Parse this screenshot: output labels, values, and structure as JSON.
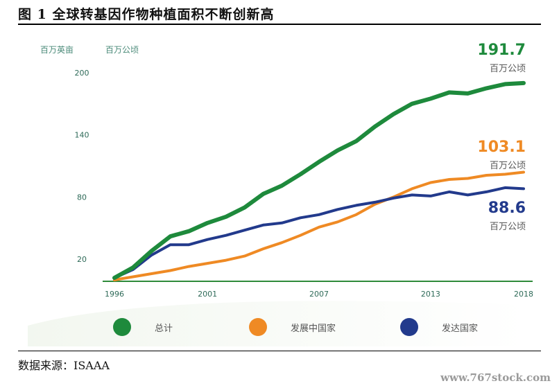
{
  "title": "图 1 全球转基因作物种植面积不断创新高",
  "source": "数据来源：ISAAA",
  "watermark": "www.767stock.com",
  "units": {
    "left": "百万英亩",
    "right": "百万公顷"
  },
  "colors": {
    "total": "#1e8a3c",
    "developing": "#ef8a24",
    "developed": "#223a8c",
    "axis": "#2f8a3a",
    "tick": "#2e6a58"
  },
  "end_labels": [
    {
      "series": "总计",
      "value": "191.7",
      "unit": "百万公顷",
      "color": "#1e8a3c"
    },
    {
      "series": "发展中国家",
      "value": "103.1",
      "unit": "百万公顷",
      "color": "#ef8a24"
    },
    {
      "series": "发达国家",
      "value": "88.6",
      "unit": "百万公顷",
      "color": "#223a8c"
    }
  ],
  "chart_data": {
    "type": "line",
    "title": "",
    "xlabel": "",
    "ylabel": "",
    "xlim": [
      1996,
      2018
    ],
    "ylim": [
      0,
      210
    ],
    "x_ticks": [
      1996,
      2001,
      2007,
      2013,
      2018
    ],
    "y_ticks": [
      20,
      80,
      140,
      200
    ],
    "x": [
      1996,
      1997,
      1998,
      1999,
      2000,
      2001,
      2002,
      2003,
      2004,
      2005,
      2006,
      2007,
      2008,
      2009,
      2010,
      2011,
      2012,
      2013,
      2014,
      2015,
      2016,
      2017,
      2018
    ],
    "series": [
      {
        "name": "总计",
        "color": "#1e8a3c",
        "values": [
          2,
          12,
          28,
          42,
          47,
          55,
          61,
          70,
          83,
          91,
          102,
          114,
          125,
          134,
          148,
          160,
          170,
          175,
          181,
          180,
          185,
          189,
          190
        ]
      },
      {
        "name": "发展中国家",
        "color": "#ef8a24",
        "values": [
          0,
          3,
          6,
          9,
          13,
          16,
          19,
          23,
          30,
          36,
          43,
          51,
          56,
          63,
          73,
          80,
          88,
          94,
          97,
          98,
          101,
          102,
          104
        ]
      },
      {
        "name": "发达国家",
        "color": "#223a8c",
        "values": [
          2,
          10,
          24,
          34,
          34,
          39,
          43,
          48,
          53,
          55,
          60,
          63,
          68,
          72,
          75,
          79,
          82,
          81,
          85,
          82,
          85,
          89,
          88
        ]
      }
    ],
    "legend": [
      "总计",
      "发展中国家",
      "发达国家"
    ],
    "legend_position": "bottom",
    "grid": false
  }
}
